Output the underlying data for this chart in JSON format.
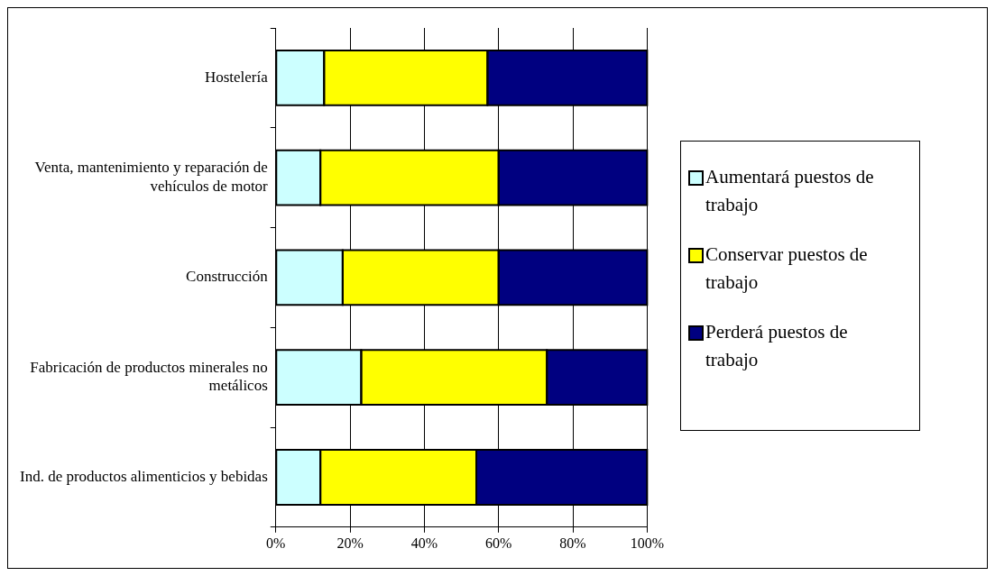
{
  "chart_data": {
    "type": "bar",
    "orientation": "horizontal",
    "stacked": true,
    "categories": [
      "Hostelería",
      "Venta, mantenimiento y reparación de vehículos de motor",
      "Construcción",
      "Fabricación de productos minerales no metálicos",
      "Ind. de productos alimenticios y bebidas"
    ],
    "series": [
      {
        "name": "Aumentará puestos de trabajo",
        "color": "#ccffff",
        "values": [
          13,
          12,
          18,
          23,
          12
        ]
      },
      {
        "name": "Conservar puestos de trabajo",
        "color": "#ffff00",
        "values": [
          44,
          48,
          42,
          50,
          42
        ]
      },
      {
        "name": "Perderá puestos de trabajo",
        "color": "#000080",
        "values": [
          43,
          40,
          40,
          27,
          46
        ]
      }
    ],
    "xlim": [
      0,
      100
    ],
    "xticks": [
      {
        "value": 0,
        "label": "0%"
      },
      {
        "value": 20,
        "label": "20%"
      },
      {
        "value": 40,
        "label": "40%"
      },
      {
        "value": 60,
        "label": "60%"
      },
      {
        "value": 80,
        "label": "80%"
      },
      {
        "value": 100,
        "label": "100%"
      }
    ],
    "grid": "x",
    "legend": "right"
  }
}
